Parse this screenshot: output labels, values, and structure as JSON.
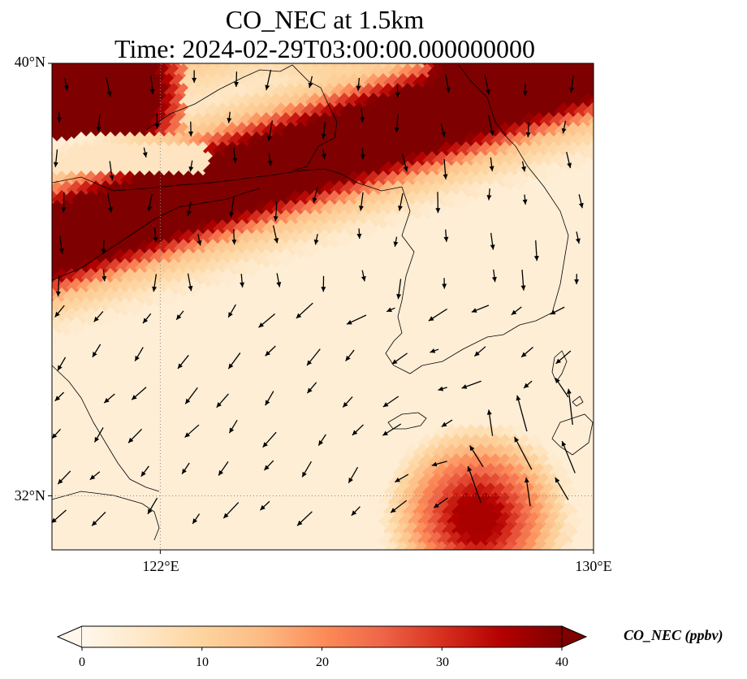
{
  "title_line1": "CO_NEC at 1.5km",
  "title_line2": "Time: 2024-02-29T03:00:00.000000000",
  "map": {
    "lon_range": [
      120,
      130
    ],
    "lat_range": [
      31,
      40
    ],
    "y_ticks": [
      {
        "value": 40,
        "label": "40°N"
      },
      {
        "value": 32,
        "label": "32°N"
      }
    ],
    "x_ticks": [
      {
        "value": 122,
        "label": "122°E"
      },
      {
        "value": 130,
        "label": "130°E"
      }
    ],
    "gridlines": {
      "lons": [
        122
      ],
      "lats": [
        32
      ],
      "style": "dotted"
    }
  },
  "colorbar": {
    "label": "CO_NEC (ppbv)",
    "min": 0,
    "max": 40,
    "ticks": [
      "0",
      "10",
      "20",
      "30",
      "40"
    ],
    "colormap": "OrRd",
    "stops": [
      "#fff7ec",
      "#fee8c8",
      "#fdd49e",
      "#fdbb84",
      "#fc8d59",
      "#ef6548",
      "#d7301f",
      "#b30000",
      "#7f0000"
    ],
    "extend": "both"
  },
  "field": {
    "description_units": "ppbv",
    "band": {
      "core_value": 40
    },
    "background_value": 3
  }
}
